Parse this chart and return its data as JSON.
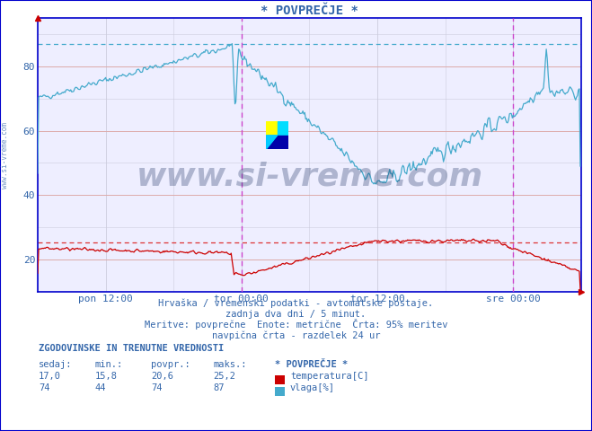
{
  "title": "* POVPREČJE *",
  "bg_color": "#eeeeff",
  "plot_bg_color": "#eeeeff",
  "outer_bg": "#ffffff",
  "grid_color_major": "#ddaaaa",
  "grid_color_minor": "#ccccdd",
  "xlim": [
    0,
    576
  ],
  "ylim": [
    10,
    95
  ],
  "yticks": [
    20,
    40,
    60,
    80
  ],
  "xtick_labels": [
    "pon 12:00",
    "tor 00:00",
    "tor 12:00",
    "sre 00:00"
  ],
  "xtick_positions": [
    72,
    216,
    360,
    504
  ],
  "vline_positions": [
    216,
    504
  ],
  "hline_temp_max": 25.2,
  "hline_humidity_max": 87,
  "temp_color": "#cc0000",
  "humidity_color": "#44aacc",
  "watermark_text": "www.si-vreme.com",
  "watermark_color": "#1a3060",
  "watermark_alpha": 0.3,
  "sidebar_text": "www.si-vreme.com",
  "bottom_text1": "Hrvaška / vremenski podatki - avtomatske postaje.",
  "bottom_text2": "zadnja dva dni / 5 minut.",
  "bottom_text3": "Meritve: povprečne  Enote: metrične  Črta: 95% meritev",
  "bottom_text4": "navpična črta - razdelek 24 ur",
  "table_header": "ZGODOVINSKE IN TRENUTNE VREDNOSTI",
  "col_headers": [
    "sedaj:",
    "min.:",
    "povpr.:",
    "maks.:",
    "* POVPREČJE *"
  ],
  "temp_row": [
    "17,0",
    "15,8",
    "20,6",
    "25,2",
    "temperatura[C]"
  ],
  "humidity_row": [
    "74",
    "44",
    "74",
    "87",
    "vlaga[%]"
  ],
  "font_color": "#3366aa",
  "border_color": "#0000cc",
  "n_points": 576
}
